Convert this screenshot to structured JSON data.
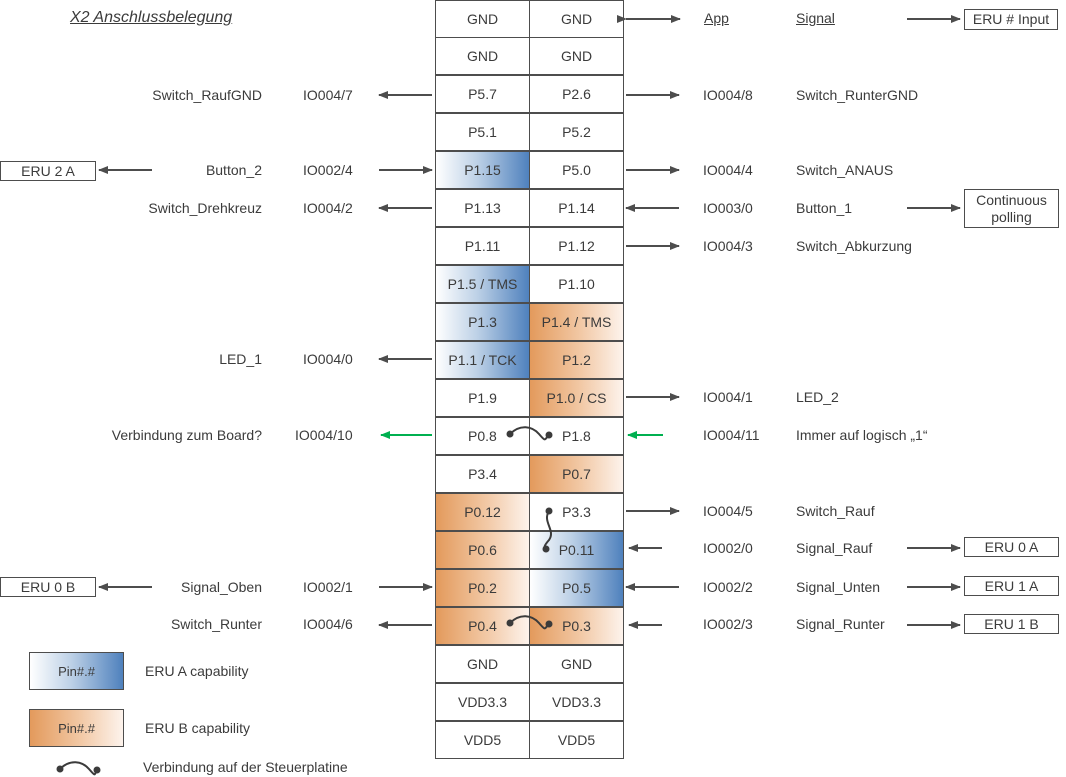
{
  "title": "X2 Anschlussbelegung",
  "headers": {
    "app": "App",
    "signal": "Signal",
    "eru_input": "ERU # Input"
  },
  "rows": [
    {
      "left": "GND",
      "right": "GND"
    },
    {
      "left": "GND",
      "right": "GND"
    },
    {
      "left": "P5.7",
      "right": "P2.6"
    },
    {
      "left": "P5.1",
      "right": "P5.2"
    },
    {
      "left": "P1.15",
      "right": "P5.0"
    },
    {
      "left": "P1.13",
      "right": "P1.14"
    },
    {
      "left": "P1.11",
      "right": "P1.12"
    },
    {
      "left": "P1.5 / TMS",
      "right": "P1.10"
    },
    {
      "left": "P1.3",
      "right": "P1.4 / TMS"
    },
    {
      "left": "P1.1 / TCK",
      "right": "P1.2"
    },
    {
      "left": "P1.9",
      "right": "P1.0 / CS"
    },
    {
      "left": "P0.8",
      "right": "P1.8"
    },
    {
      "left": "P3.4",
      "right": "P0.7"
    },
    {
      "left": "P0.12",
      "right": "P3.3"
    },
    {
      "left": "P0.6",
      "right": "P0.11"
    },
    {
      "left": "P0.2",
      "right": "P0.5"
    },
    {
      "left": "P0.4",
      "right": "P0.3"
    },
    {
      "left": "GND",
      "right": "GND"
    },
    {
      "left": "VDD3.3",
      "right": "VDD3.3"
    },
    {
      "left": "VDD5",
      "right": "VDD5"
    }
  ],
  "left_labels": {
    "r2": {
      "signal": "Switch_RaufGND",
      "io": "IO004/7"
    },
    "r4": {
      "signal": "Button_2",
      "io": "IO002/4"
    },
    "r5": {
      "signal": "Switch_Drehkreuz",
      "io": "IO004/2"
    },
    "r9": {
      "signal": "LED_1",
      "io": "IO004/0"
    },
    "r11": {
      "signal": "Verbindung zum Board?",
      "io": "IO004/10"
    },
    "r15": {
      "signal": "Signal_Oben",
      "io": "IO002/1"
    },
    "r16": {
      "signal": "Switch_Runter",
      "io": "IO004/6"
    }
  },
  "right_labels": {
    "r2": {
      "io": "IO004/8",
      "signal": "Switch_RunterGND"
    },
    "r4": {
      "io": "IO004/4",
      "signal": "Switch_ANAUS"
    },
    "r5": {
      "io": "IO003/0",
      "signal": "Button_1"
    },
    "r6": {
      "io": "IO004/3",
      "signal": "Switch_Abkurzung"
    },
    "r10": {
      "io": "IO004/1",
      "signal": "LED_2"
    },
    "r11": {
      "io": "IO004/11",
      "signal": "Immer auf logisch „1“"
    },
    "r13": {
      "io": "IO004/5",
      "signal": "Switch_Rauf"
    },
    "r14": {
      "io": "IO002/0",
      "signal": "Signal_Rauf"
    },
    "r15": {
      "io": "IO002/2",
      "signal": "Signal_Unten"
    },
    "r16": {
      "io": "IO002/3",
      "signal": "Signal_Runter"
    }
  },
  "eru_boxes": {
    "eru2a": "ERU 2 A",
    "eru0b": "ERU 0 B",
    "continuous": "Continuous polling",
    "eru0a": "ERU 0 A",
    "eru1a": "ERU 1 A",
    "eru1b": "ERU 1 B"
  },
  "legend": {
    "swatch_label": "Pin#.#",
    "eru_a": "ERU A capability",
    "eru_b": "ERU B capability",
    "connection": "Verbindung auf der Steuerplatine"
  },
  "colors": {
    "eru_a_blue": "#4f81bd",
    "eru_b_orange": "#e39a5c",
    "line_dark": "#4d4d4d",
    "arrow_green": "#00b050"
  }
}
